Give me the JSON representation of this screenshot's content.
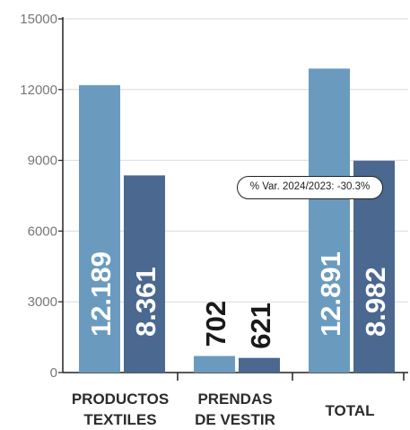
{
  "chart_data": {
    "type": "bar",
    "categories": [
      [
        "PRODUCTOS",
        "TEXTILES"
      ],
      [
        "PRENDAS",
        "DE VESTIR"
      ],
      [
        "TOTAL"
      ]
    ],
    "series": [
      {
        "values": [
          12189,
          702,
          12891
        ],
        "labels": [
          "12.189",
          "702",
          "12.891"
        ],
        "color": "#6a9bbf"
      },
      {
        "values": [
          8361,
          621,
          8982
        ],
        "labels": [
          "8.361",
          "621",
          "8.982"
        ],
        "color": "#4a6890"
      }
    ],
    "y_ticks": [
      "0",
      "3000",
      "6000",
      "9000",
      "12000",
      "15000"
    ],
    "ylim": [
      0,
      15000
    ],
    "grid": true,
    "annotation": "% Var. 2024/2023: -30.3%"
  }
}
